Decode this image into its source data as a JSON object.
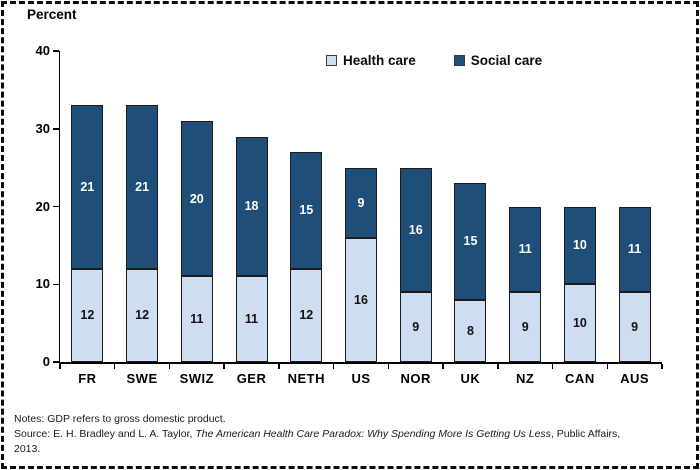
{
  "header": {
    "axis_title": "Percent"
  },
  "legend": [
    {
      "label": "Health care",
      "color": "#CEDDF1"
    },
    {
      "label": "Social care",
      "color": "#1F4E79"
    }
  ],
  "chart_data": {
    "type": "bar",
    "stacked": true,
    "title": "",
    "ylabel": "Percent",
    "xlabel": "",
    "ylim": [
      0,
      40
    ],
    "yticks": [
      0,
      10,
      20,
      30,
      40
    ],
    "grid": false,
    "legend_position": "top",
    "categories": [
      "FR",
      "SWE",
      "SWIZ",
      "GER",
      "NETH",
      "US",
      "NOR",
      "UK",
      "NZ",
      "CAN",
      "AUS"
    ],
    "series": [
      {
        "name": "Health care",
        "color": "#CEDDF1",
        "label_color": "#111111",
        "values": [
          12,
          12,
          11,
          11,
          12,
          16,
          9,
          8,
          9,
          10,
          9
        ]
      },
      {
        "name": "Social care",
        "color": "#1F4E79",
        "label_color": "#FFFFFF",
        "values": [
          21,
          21,
          20,
          18,
          15,
          9,
          16,
          15,
          11,
          10,
          11
        ]
      }
    ]
  },
  "notes": {
    "line1": "Notes: GDP refers to gross domestic product.",
    "source_prefix": "Source: E. H. Bradley and L. A. Taylor, ",
    "source_title": "The American Health Care Paradox: Why Spending More Is Getting Us Less",
    "source_suffix": ", Public Affairs,",
    "line3": "2013."
  }
}
